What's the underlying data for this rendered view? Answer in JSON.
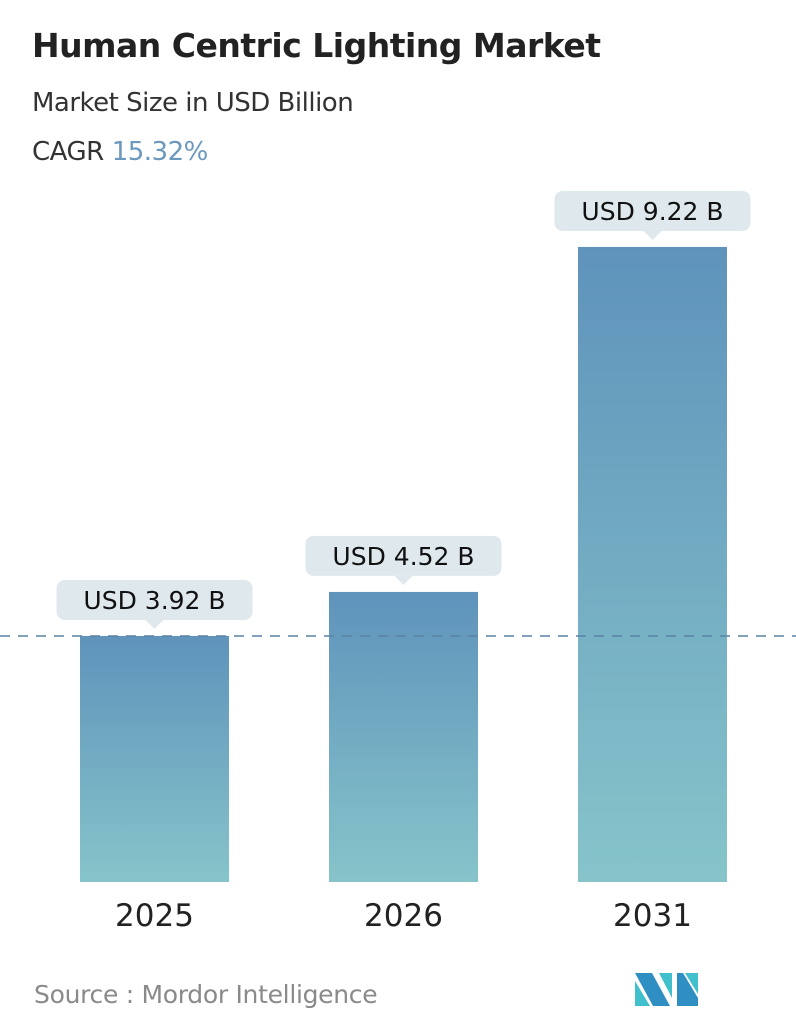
{
  "header": {
    "title": "Human Centric Lighting Market",
    "subtitle": "Market Size in USD Billion",
    "cagr_label": "CAGR",
    "cagr_value": "15.32%"
  },
  "chart_data": {
    "type": "bar",
    "categories": [
      "2025",
      "2026",
      "2031"
    ],
    "values": [
      3.92,
      4.52,
      9.22
    ],
    "data_labels": [
      "USD 3.92 B",
      "USD 4.52 B",
      "USD 9.22 B"
    ],
    "unit": "USD Billion",
    "reference_line": {
      "style": "dashed",
      "value": 3.92
    },
    "colors": {
      "bar_top": "#5f93bb",
      "bar_bottom": "#86c4ca",
      "label_bg": "#dfe9ed",
      "ref_line": "#5a82a3",
      "cagr": "#6b98bd"
    },
    "grid": false
  },
  "footer": {
    "source": "Source :  Mordor Intelligence",
    "logo_text": "MI"
  }
}
